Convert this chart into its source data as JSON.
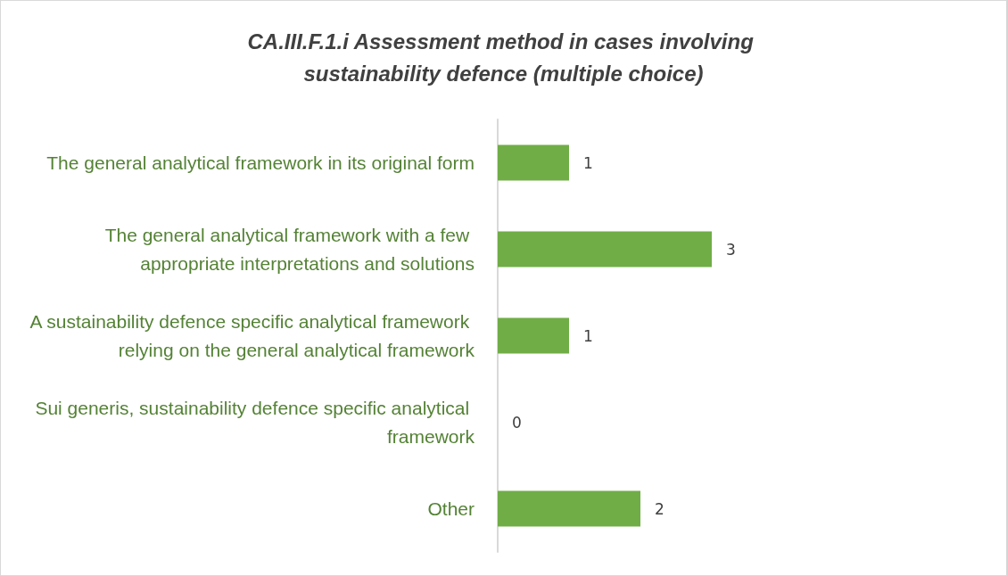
{
  "chart_data": {
    "type": "bar",
    "orientation": "horizontal",
    "title": "CA.III.F.1.i Assessment method in cases involving sustainability defence (multiple choice)",
    "categories": [
      "The general analytical framework in its original form",
      "The general analytical framework with a few appropriate interpretations and solutions",
      "A sustainability defence specific analytical framework relying on the general analytical framework",
      "Sui generis, sustainability defence specific analytical framework",
      "Other"
    ],
    "values": [
      1,
      3,
      1,
      0,
      2
    ],
    "color": "#70ad47",
    "data_labels": true
  }
}
